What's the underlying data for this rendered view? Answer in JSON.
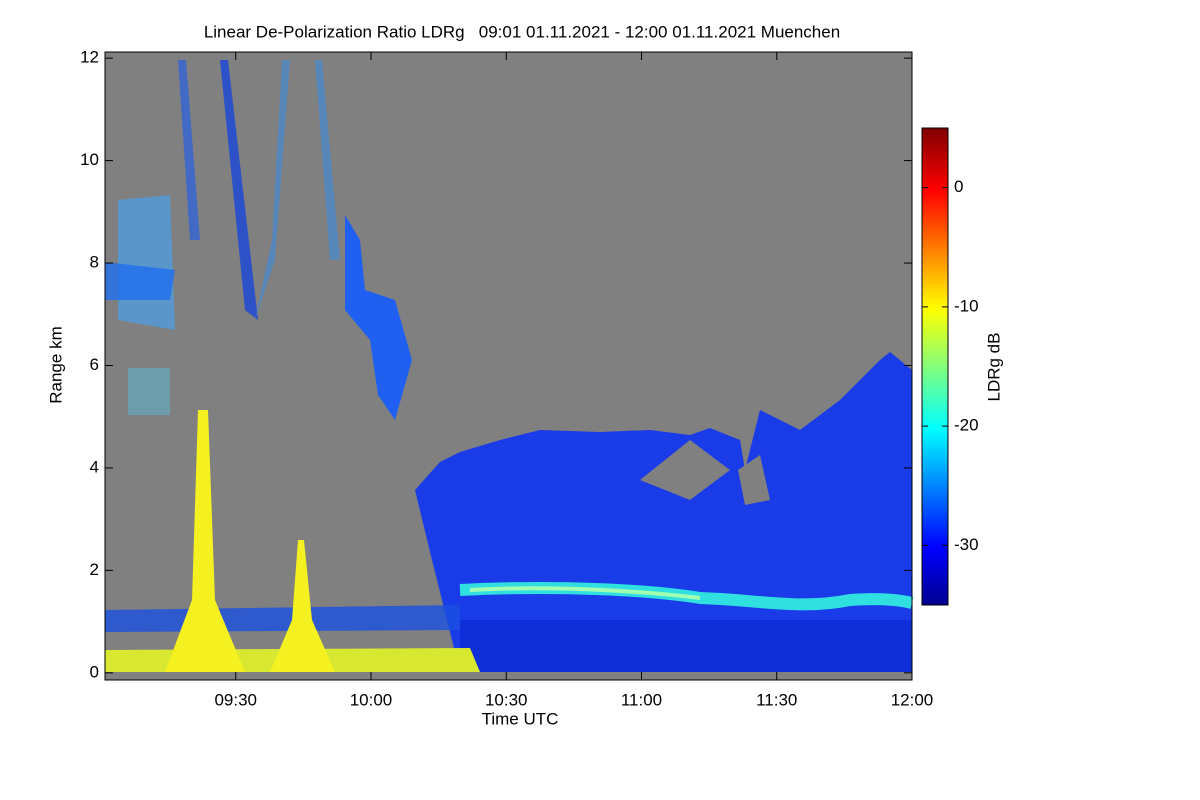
{
  "chart_data": {
    "type": "heatmap",
    "title": "Linear De-Polarization Ratio LDRg   09:01 01.11.2021 - 12:00 01.11.2021 Muenchen",
    "x_label": "Time UTC",
    "y_label": "Range km",
    "colorbar_label": "LDRg dB",
    "xlim": [
      9.0167,
      12
    ],
    "xticks": [
      {
        "value": 9.5,
        "label": "09:30"
      },
      {
        "value": 10,
        "label": "10:00"
      },
      {
        "value": 10.5,
        "label": "10:30"
      },
      {
        "value": 11,
        "label": "11:00"
      },
      {
        "value": 11.5,
        "label": "11:30"
      },
      {
        "value": 12,
        "label": "12:00"
      }
    ],
    "ylim": [
      -0.14,
      12.12
    ],
    "yticks": [
      0,
      2,
      4,
      6,
      8,
      10,
      12
    ],
    "zlim": [
      -35,
      5
    ],
    "zticks": [
      0,
      -10,
      -20,
      -30
    ],
    "colormap": "jet"
  }
}
